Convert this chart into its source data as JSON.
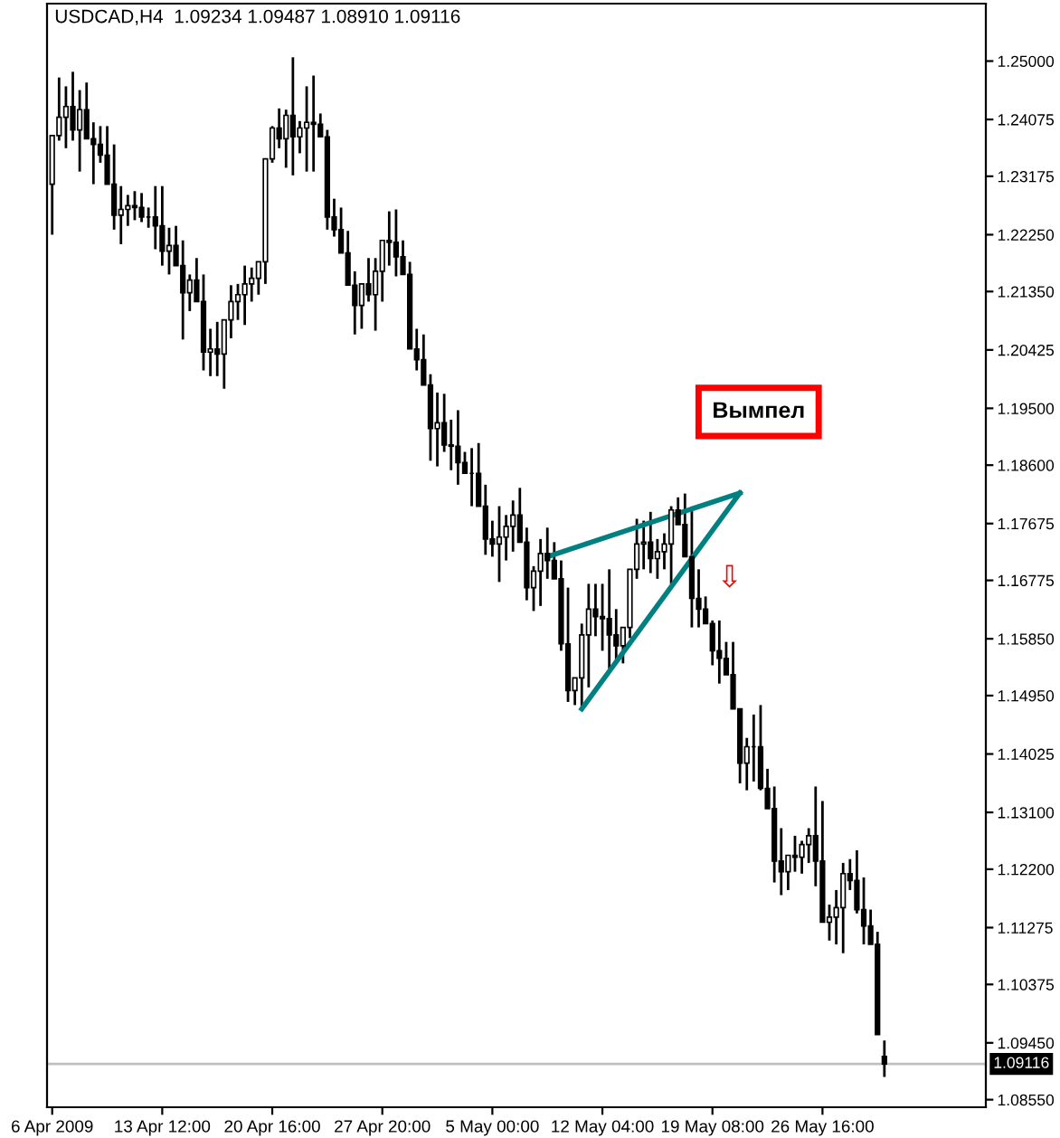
{
  "chart_data": {
    "type": "candlestick",
    "title": "USDCAD,H4  1.09234 1.09487 1.08910 1.09116",
    "categories": [
      "6 Apr 2009",
      null,
      null,
      null,
      null,
      null,
      null,
      null,
      null,
      null,
      null,
      null,
      null,
      null,
      null,
      null,
      "13 Apr 12:00",
      null,
      null,
      null,
      null,
      null,
      null,
      null,
      null,
      null,
      null,
      null,
      null,
      null,
      null,
      null,
      "20 Apr 16:00",
      null,
      null,
      null,
      null,
      null,
      null,
      null,
      null,
      null,
      null,
      null,
      null,
      null,
      null,
      null,
      "27 Apr 20:00",
      null,
      null,
      null,
      null,
      null,
      null,
      null,
      null,
      null,
      null,
      null,
      null,
      null,
      null,
      null,
      "5 May 00:00",
      null,
      null,
      null,
      null,
      null,
      null,
      null,
      null,
      null,
      null,
      null,
      null,
      null,
      null,
      null,
      "12 May 04:00",
      null,
      null,
      null,
      null,
      null,
      null,
      null,
      null,
      null,
      null,
      null,
      null,
      null,
      null,
      null,
      "19 May 08:00",
      null,
      null,
      null,
      null,
      null,
      null,
      null,
      null,
      null,
      null,
      null,
      null,
      null,
      null,
      null,
      "26 May 16:00",
      null,
      null,
      null,
      null,
      null,
      null,
      null,
      null,
      null,
      null,
      null,
      null,
      null,
      null,
      null,
      null,
      null,
      null,
      null,
      null,
      null,
      null,
      null
    ],
    "ohlc": [
      [
        1.2305,
        1.2382,
        1.2225,
        1.2382
      ],
      [
        1.2382,
        1.2474,
        1.2374,
        1.2411
      ],
      [
        1.2411,
        1.246,
        1.2362,
        1.2428
      ],
      [
        1.2428,
        1.2483,
        1.2374,
        1.2391
      ],
      [
        1.2391,
        1.2454,
        1.2325,
        1.2423
      ],
      [
        1.2423,
        1.2466,
        1.2377,
        1.2377
      ],
      [
        1.2377,
        1.2403,
        1.2305,
        1.2368
      ],
      [
        1.2368,
        1.2397,
        1.2339,
        1.2351
      ],
      [
        1.2351,
        1.2397,
        1.2305,
        1.2305
      ],
      [
        1.2305,
        1.2368,
        1.2233,
        1.2256
      ],
      [
        1.2256,
        1.2302,
        1.221,
        1.2265
      ],
      [
        1.2265,
        1.2288,
        1.2239,
        1.2271
      ],
      [
        1.2271,
        1.2294,
        1.2248,
        1.2268
      ],
      [
        1.2268,
        1.2291,
        1.2245,
        1.2253
      ],
      [
        1.2253,
        1.2268,
        1.2236,
        1.2253
      ],
      [
        1.2253,
        1.2302,
        1.2202,
        1.2239
      ],
      [
        1.2239,
        1.2302,
        1.2176,
        1.2199
      ],
      [
        1.2199,
        1.2236,
        1.2162,
        1.2208
      ],
      [
        1.2208,
        1.2239,
        1.2176,
        1.2176
      ],
      [
        1.2176,
        1.2216,
        1.2059,
        1.2133
      ],
      [
        1.2133,
        1.2162,
        1.2104,
        1.2153
      ],
      [
        1.2153,
        1.2188,
        1.2119,
        1.2119
      ],
      [
        1.2119,
        1.2162,
        1.201,
        1.2039
      ],
      [
        1.2039,
        1.2076,
        1.2001,
        1.2044
      ],
      [
        1.2044,
        1.2087,
        1.2001,
        1.2036
      ],
      [
        1.2036,
        1.209,
        1.1981,
        1.209
      ],
      [
        1.209,
        1.2145,
        1.2061,
        1.2119
      ],
      [
        1.2119,
        1.2147,
        1.209,
        1.213
      ],
      [
        1.213,
        1.2176,
        1.2082,
        1.2147
      ],
      [
        1.2147,
        1.2173,
        1.2119,
        1.2156
      ],
      [
        1.2156,
        1.2182,
        1.213,
        1.2182
      ],
      [
        1.2182,
        1.2345,
        1.2147,
        1.2345
      ],
      [
        1.2345,
        1.2397,
        1.2339,
        1.2394
      ],
      [
        1.2394,
        1.2425,
        1.2362,
        1.2377
      ],
      [
        1.2377,
        1.2423,
        1.2331,
        1.2414
      ],
      [
        1.2414,
        1.2506,
        1.2319,
        1.238
      ],
      [
        1.238,
        1.2405,
        1.2354,
        1.2394
      ],
      [
        1.2394,
        1.246,
        1.2325,
        1.2403
      ],
      [
        1.2403,
        1.2477,
        1.2325,
        1.24
      ],
      [
        1.24,
        1.2417,
        1.238,
        1.238
      ],
      [
        1.238,
        1.2391,
        1.2233,
        1.2253
      ],
      [
        1.2253,
        1.2282,
        1.2222,
        1.2233
      ],
      [
        1.2233,
        1.2268,
        1.2196,
        1.2196
      ],
      [
        1.2196,
        1.2231,
        1.2145,
        1.2145
      ],
      [
        1.2145,
        1.2167,
        1.2067,
        1.2113
      ],
      [
        1.2113,
        1.2147,
        1.2076,
        1.2147
      ],
      [
        1.2147,
        1.2188,
        1.2119,
        1.213
      ],
      [
        1.213,
        1.2188,
        1.2073,
        1.2167
      ],
      [
        1.2167,
        1.2216,
        1.2119,
        1.2216
      ],
      [
        1.2216,
        1.2262,
        1.2176,
        1.2213
      ],
      [
        1.2213,
        1.2265,
        1.2159,
        1.219
      ],
      [
        1.219,
        1.2216,
        1.2162,
        1.2162
      ],
      [
        1.2162,
        1.2182,
        1.2044,
        1.2044
      ],
      [
        1.2044,
        1.2076,
        1.201,
        1.2027
      ],
      [
        1.2027,
        1.2067,
        1.1987,
        1.1987
      ],
      [
        1.1987,
        1.2004,
        1.1867,
        1.1918
      ],
      [
        1.1918,
        1.1975,
        1.1858,
        1.1927
      ],
      [
        1.1927,
        1.1973,
        1.1881,
        1.1892
      ],
      [
        1.1892,
        1.1932,
        1.1852,
        1.189
      ],
      [
        1.189,
        1.1947,
        1.1829,
        1.1864
      ],
      [
        1.1864,
        1.1881,
        1.1847,
        1.1847
      ],
      [
        1.1847,
        1.1887,
        1.1795,
        1.1847
      ],
      [
        1.1847,
        1.1895,
        1.1795,
        1.1795
      ],
      [
        1.1795,
        1.1829,
        1.1718,
        1.1743
      ],
      [
        1.1743,
        1.1772,
        1.1715,
        1.1735
      ],
      [
        1.1735,
        1.1795,
        1.1675,
        1.1746
      ],
      [
        1.1746,
        1.1781,
        1.1709,
        1.1763
      ],
      [
        1.1763,
        1.1804,
        1.1723,
        1.1781
      ],
      [
        1.1781,
        1.1824,
        1.1738,
        1.1738
      ],
      [
        1.1738,
        1.1761,
        1.1646,
        1.1666
      ],
      [
        1.1666,
        1.17,
        1.1629,
        1.1692
      ],
      [
        1.1692,
        1.1743,
        1.1637,
        1.172
      ],
      [
        1.172,
        1.1761,
        1.168,
        1.1709
      ],
      [
        1.1709,
        1.1738,
        1.168,
        1.168
      ],
      [
        1.168,
        1.1709,
        1.1566,
        1.1577
      ],
      [
        1.1577,
        1.1666,
        1.1485,
        1.1503
      ],
      [
        1.1503,
        1.1523,
        1.148,
        1.1523
      ],
      [
        1.1523,
        1.1609,
        1.1474,
        1.1591
      ],
      [
        1.1591,
        1.1672,
        1.1508,
        1.1632
      ],
      [
        1.1632,
        1.1672,
        1.1589,
        1.162
      ],
      [
        1.162,
        1.1672,
        1.1566,
        1.1617
      ],
      [
        1.1617,
        1.1695,
        1.1537,
        1.1591
      ],
      [
        1.1591,
        1.1632,
        1.1551,
        1.1574
      ],
      [
        1.1574,
        1.1603,
        1.1546,
        1.1603
      ],
      [
        1.1603,
        1.1695,
        1.1586,
        1.1695
      ],
      [
        1.1695,
        1.1775,
        1.168,
        1.1735
      ],
      [
        1.1735,
        1.1772,
        1.1695,
        1.1738
      ],
      [
        1.1738,
        1.1786,
        1.1689,
        1.1712
      ],
      [
        1.1712,
        1.1743,
        1.168,
        1.1723
      ],
      [
        1.1723,
        1.1752,
        1.1695,
        1.1735
      ],
      [
        1.1735,
        1.1795,
        1.1672,
        1.1789
      ],
      [
        1.1789,
        1.1809,
        1.1766,
        1.1766
      ],
      [
        1.1766,
        1.1815,
        1.1715,
        1.1715
      ],
      [
        1.1715,
        1.1789,
        1.1603,
        1.1649
      ],
      [
        1.1649,
        1.1695,
        1.1603,
        1.1632
      ],
      [
        1.1632,
        1.1652,
        1.1609,
        1.1609
      ],
      [
        1.1609,
        1.1614,
        1.1543,
        1.1566
      ],
      [
        1.1566,
        1.1614,
        1.1514,
        1.1554
      ],
      [
        1.1554,
        1.158,
        1.1528,
        1.1528
      ],
      [
        1.1528,
        1.158,
        1.1474,
        1.1474
      ],
      [
        1.1474,
        1.1474,
        1.1356,
        1.1388
      ],
      [
        1.1388,
        1.1428,
        1.1345,
        1.1414
      ],
      [
        1.1414,
        1.1465,
        1.1359,
        1.1414
      ],
      [
        1.1414,
        1.148,
        1.1345,
        1.1348
      ],
      [
        1.1348,
        1.1379,
        1.1316,
        1.1316
      ],
      [
        1.1316,
        1.1351,
        1.1199,
        1.1233
      ],
      [
        1.1233,
        1.1285,
        1.1179,
        1.1216
      ],
      [
        1.1216,
        1.1242,
        1.1187,
        1.1242
      ],
      [
        1.1242,
        1.1273,
        1.1216,
        1.1239
      ],
      [
        1.1239,
        1.1265,
        1.1213,
        1.1259
      ],
      [
        1.1259,
        1.1285,
        1.123,
        1.1273
      ],
      [
        1.1273,
        1.1351,
        1.1193,
        1.1233
      ],
      [
        1.1233,
        1.1328,
        1.1136,
        1.1136
      ],
      [
        1.1136,
        1.1164,
        1.1107,
        1.1144
      ],
      [
        1.1144,
        1.1187,
        1.1101,
        1.1159
      ],
      [
        1.1159,
        1.123,
        1.1087,
        1.1213
      ],
      [
        1.1213,
        1.1236,
        1.1187,
        1.1202
      ],
      [
        1.1202,
        1.125,
        1.115,
        1.1156
      ],
      [
        1.1156,
        1.1207,
        1.1101,
        1.113
      ],
      [
        1.113,
        1.1156,
        1.1101,
        1.1101
      ],
      [
        1.1101,
        1.1121,
        1.0958,
        1.0958
      ],
      [
        1.09234,
        1.09487,
        1.0891,
        1.09116
      ],
      null,
      null,
      null,
      null,
      null,
      null,
      null,
      null,
      null,
      null,
      null,
      null,
      null,
      null
    ],
    "series": [
      {
        "type": "line",
        "color": "#008080",
        "values": [
          null,
          null,
          null,
          null,
          null,
          null,
          null,
          null,
          null,
          null,
          null,
          null,
          null,
          null,
          null,
          null,
          null,
          null,
          null,
          null,
          null,
          null,
          null,
          null,
          null,
          null,
          null,
          null,
          null,
          null,
          null,
          null,
          null,
          null,
          null,
          null,
          null,
          null,
          null,
          null,
          null,
          null,
          null,
          null,
          null,
          null,
          null,
          null,
          null,
          null,
          null,
          null,
          null,
          null,
          null,
          null,
          null,
          null,
          null,
          null,
          null,
          null,
          null,
          null,
          null,
          null,
          null,
          null,
          null,
          null,
          null,
          null,
          1.1715,
          null,
          null,
          null,
          null,
          null,
          null,
          null,
          null,
          null,
          null,
          null,
          null,
          null,
          null,
          null,
          null,
          null,
          null,
          null,
          null,
          null,
          null,
          null,
          null,
          null,
          null,
          null,
          1.1816,
          null,
          null,
          null,
          null,
          null,
          null,
          null,
          null,
          null,
          null,
          null,
          null,
          null,
          null,
          null,
          null,
          null,
          null,
          null,
          null,
          null,
          null,
          null,
          null,
          null,
          null,
          null,
          null,
          null,
          null,
          null,
          null,
          null,
          null,
          null
        ]
      },
      {
        "type": "line",
        "color": "#008080",
        "values": [
          null,
          null,
          null,
          null,
          null,
          null,
          null,
          null,
          null,
          null,
          null,
          null,
          null,
          null,
          null,
          null,
          null,
          null,
          null,
          null,
          null,
          null,
          null,
          null,
          null,
          null,
          null,
          null,
          null,
          null,
          null,
          null,
          null,
          null,
          null,
          null,
          null,
          null,
          null,
          null,
          null,
          null,
          null,
          null,
          null,
          null,
          null,
          null,
          null,
          null,
          null,
          null,
          null,
          null,
          null,
          null,
          null,
          null,
          null,
          null,
          null,
          null,
          null,
          null,
          null,
          null,
          null,
          null,
          null,
          null,
          null,
          null,
          null,
          null,
          null,
          null,
          null,
          1.1474,
          null,
          null,
          null,
          null,
          null,
          null,
          null,
          null,
          null,
          null,
          null,
          null,
          null,
          null,
          null,
          null,
          null,
          null,
          null,
          null,
          null,
          null,
          1.1816,
          null,
          null,
          null,
          null,
          null,
          null,
          null,
          null,
          null,
          null,
          null,
          null,
          null,
          null,
          null,
          null,
          null,
          null,
          null,
          null,
          null,
          null,
          null,
          null,
          null,
          null,
          null,
          null,
          null,
          null,
          null,
          null,
          null,
          null,
          null
        ]
      }
    ],
    "annotations": [
      "Вымпел",
      "⇩"
    ],
    "ref_lines": [
      {
        "axis": "y",
        "value": 1.09116,
        "label": "1.09116",
        "color": "#c0c0c0"
      }
    ],
    "ylim": [
      1.0843,
      1.2591
    ],
    "yticks": [
      {
        "value": 1.25,
        "label": "1.25000"
      },
      {
        "value": 1.24075,
        "label": "1.24075"
      },
      {
        "value": 1.23175,
        "label": "1.23175"
      },
      {
        "value": 1.2225,
        "label": "1.22250"
      },
      {
        "value": 1.2135,
        "label": "1.21350"
      },
      {
        "value": 1.20425,
        "label": "1.20425"
      },
      {
        "value": 1.195,
        "label": "1.19500"
      },
      {
        "value": 1.186,
        "label": "1.18600"
      },
      {
        "value": 1.17675,
        "label": "1.17675"
      },
      {
        "value": 1.16775,
        "label": "1.16775"
      },
      {
        "value": 1.1585,
        "label": "1.15850"
      },
      {
        "value": 1.1495,
        "label": "1.14950"
      },
      {
        "value": 1.14025,
        "label": "1.14025"
      },
      {
        "value": 1.131,
        "label": "1.13100"
      },
      {
        "value": 1.122,
        "label": "1.12200"
      },
      {
        "value": 1.11275,
        "label": "1.11275"
      },
      {
        "value": 1.10375,
        "label": "1.10375"
      },
      {
        "value": 1.0945,
        "label": "1.09450"
      },
      {
        "value": 1.0855,
        "label": "1.08550"
      }
    ],
    "grid": false
  }
}
